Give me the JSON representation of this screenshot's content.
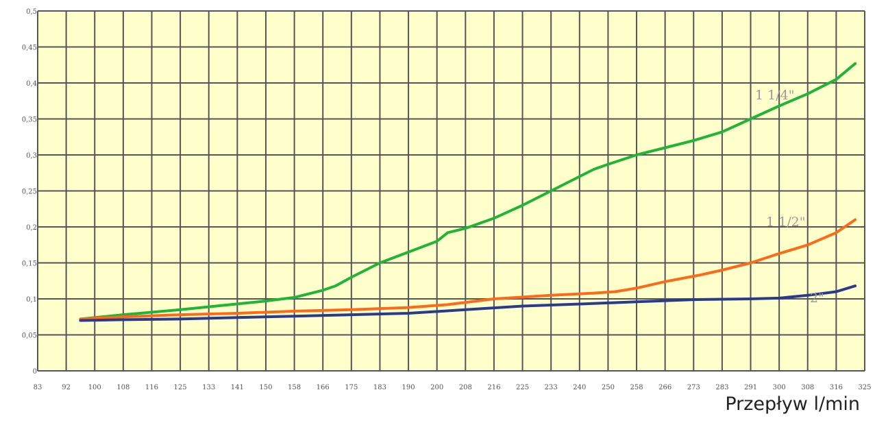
{
  "chart_data": {
    "type": "line",
    "title": "",
    "xlabel": "Przepływ l/min",
    "ylabel": "",
    "x_ticks": [
      "83",
      "92",
      "100",
      "108",
      "116",
      "125",
      "133",
      "141",
      "150",
      "158",
      "166",
      "175",
      "183",
      "190",
      "200",
      "208",
      "216",
      "225",
      "233",
      "240",
      "250",
      "258",
      "266",
      "273",
      "283",
      "291",
      "300",
      "308",
      "316",
      "325"
    ],
    "y_ticks": [
      "0",
      "0,05",
      "0,1",
      "0,15",
      "0,2",
      "0,25",
      "0,3",
      "0,35",
      "0,4",
      "0,45",
      "0,5"
    ],
    "ylim": [
      0,
      0.5
    ],
    "grid": true,
    "colors": {
      "background": "#ffffcc",
      "grid": "#555555"
    },
    "series": [
      {
        "name": "1 1/4\"",
        "color": "#22b339",
        "points": [
          [
            96,
            0.072
          ],
          [
            108,
            0.078
          ],
          [
            125,
            0.085
          ],
          [
            141,
            0.093
          ],
          [
            150,
            0.097
          ],
          [
            158,
            0.102
          ],
          [
            166,
            0.112
          ],
          [
            170,
            0.118
          ],
          [
            175,
            0.13
          ],
          [
            183,
            0.15
          ],
          [
            190,
            0.165
          ],
          [
            200,
            0.18
          ],
          [
            203,
            0.192
          ],
          [
            208,
            0.198
          ],
          [
            216,
            0.212
          ],
          [
            225,
            0.23
          ],
          [
            233,
            0.25
          ],
          [
            240,
            0.27
          ],
          [
            245,
            0.28
          ],
          [
            250,
            0.287
          ],
          [
            258,
            0.3
          ],
          [
            266,
            0.31
          ],
          [
            273,
            0.32
          ],
          [
            283,
            0.332
          ],
          [
            291,
            0.35
          ],
          [
            300,
            0.368
          ],
          [
            308,
            0.385
          ],
          [
            316,
            0.405
          ],
          [
            322,
            0.427
          ]
        ]
      },
      {
        "name": "1 1/2\"",
        "color": "#ff6a1a",
        "points": [
          [
            96,
            0.072
          ],
          [
            108,
            0.075
          ],
          [
            125,
            0.078
          ],
          [
            141,
            0.08
          ],
          [
            158,
            0.083
          ],
          [
            175,
            0.085
          ],
          [
            190,
            0.088
          ],
          [
            203,
            0.092
          ],
          [
            216,
            0.1
          ],
          [
            233,
            0.105
          ],
          [
            245,
            0.108
          ],
          [
            252,
            0.11
          ],
          [
            258,
            0.115
          ],
          [
            266,
            0.124
          ],
          [
            275,
            0.133
          ],
          [
            283,
            0.14
          ],
          [
            291,
            0.15
          ],
          [
            300,
            0.163
          ],
          [
            308,
            0.175
          ],
          [
            316,
            0.192
          ],
          [
            322,
            0.21
          ]
        ]
      },
      {
        "name": "2\"",
        "color": "#2a3a8c",
        "points": [
          [
            96,
            0.07
          ],
          [
            108,
            0.071
          ],
          [
            125,
            0.072
          ],
          [
            141,
            0.074
          ],
          [
            158,
            0.076
          ],
          [
            175,
            0.078
          ],
          [
            190,
            0.08
          ],
          [
            208,
            0.085
          ],
          [
            225,
            0.09
          ],
          [
            241,
            0.093
          ],
          [
            258,
            0.096
          ],
          [
            273,
            0.099
          ],
          [
            291,
            0.1
          ],
          [
            300,
            0.101
          ],
          [
            308,
            0.105
          ],
          [
            316,
            0.11
          ],
          [
            322,
            0.118
          ]
        ]
      }
    ],
    "labels": [
      "1 1/4\"",
      "1 1/2\"",
      "2\""
    ]
  }
}
